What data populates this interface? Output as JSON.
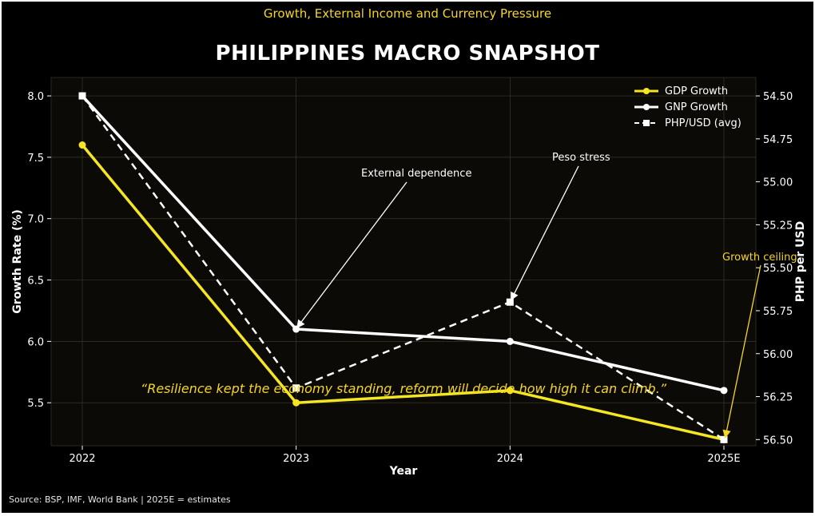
{
  "header": {
    "subtitle": "Growth, External Income and Currency Pressure",
    "title": "PHILIPPINES MACRO SNAPSHOT"
  },
  "footer": {
    "source": "Source: BSP, IMF, World Bank | 2025E = estimates"
  },
  "colors": {
    "background": "#000000",
    "plot_background": "#0c0a06",
    "gdp": "#f5e623",
    "gnp": "#ffffff",
    "fx": "#ffffff",
    "accent_text": "#f5d623",
    "grid": "#3a3628"
  },
  "chart_data": {
    "type": "line",
    "title": "PHILIPPINES MACRO SNAPSHOT",
    "subtitle": "Growth, External Income and Currency Pressure",
    "xlabel": "Year",
    "ylabel": "Growth Rate (%)",
    "y2label": "PHP per USD",
    "categories": [
      "2022",
      "2023",
      "2024",
      "2025E"
    ],
    "ylim": [
      5.15,
      8.15
    ],
    "yticks": [
      5.5,
      6.0,
      6.5,
      7.0,
      7.5,
      8.0
    ],
    "ytick_labels": [
      "5.5",
      "6.0",
      "6.5",
      "7.0",
      "7.5",
      "8.0"
    ],
    "y2lim": [
      54.5,
      56.5
    ],
    "y2_inverted": true,
    "y2ticks": [
      54.5,
      54.75,
      55.0,
      55.25,
      55.5,
      55.75,
      56.0,
      56.25,
      56.5
    ],
    "y2tick_labels": [
      "54.50",
      "54.75",
      "55.00",
      "55.25",
      "55.50",
      "55.75",
      "56.00",
      "56.25",
      "56.50"
    ],
    "grid": true,
    "legend_position": "top-right",
    "series": [
      {
        "name": "GDP Growth",
        "axis": "left",
        "style": "solid",
        "marker": "circle",
        "values": [
          7.6,
          5.5,
          5.6,
          5.2
        ]
      },
      {
        "name": "GNP Growth",
        "axis": "left",
        "style": "solid",
        "marker": "circle",
        "values": [
          8.0,
          6.1,
          6.0,
          5.6
        ]
      },
      {
        "name": "PHP/USD (avg)",
        "axis": "right",
        "style": "dashed",
        "marker": "square",
        "values": [
          54.5,
          56.2,
          55.7,
          56.5
        ]
      }
    ],
    "annotations": [
      {
        "text": "External dependence",
        "target_category": "2023",
        "target_value": 6.1
      },
      {
        "text": "Peso stress",
        "target_category": "2024",
        "target_value": 55.7
      },
      {
        "text": "Growth ceiling",
        "target_category": "2025E",
        "target_value": 5.2
      }
    ],
    "quote": "“Resilience kept the economy standing, reform will decide how high it can climb.”"
  }
}
